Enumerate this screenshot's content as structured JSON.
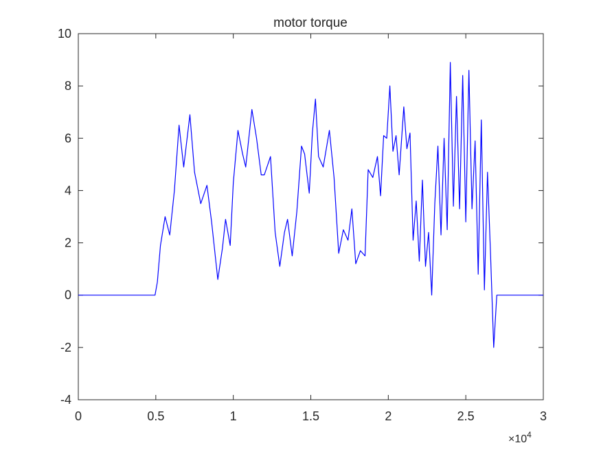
{
  "chart_data": {
    "type": "line",
    "title": "motor torque",
    "xlabel": "",
    "ylabel": "",
    "xlim": [
      0,
      30000
    ],
    "ylim": [
      -4,
      10
    ],
    "x_ticks": [
      0,
      5000,
      10000,
      15000,
      20000,
      25000,
      30000
    ],
    "x_tick_labels": [
      "0",
      "0.5",
      "1",
      "1.5",
      "2",
      "2.5",
      "3"
    ],
    "y_ticks": [
      -4,
      -2,
      0,
      2,
      4,
      6,
      8,
      10
    ],
    "y_tick_labels": [
      "-4",
      "-2",
      "0",
      "2",
      "4",
      "6",
      "8",
      "10"
    ],
    "x_exponent_label": "×10",
    "x_exponent_power": "4",
    "grid": false,
    "line_color": "#0000ff",
    "series": [
      {
        "x": [
          0,
          4950,
          5100,
          5300,
          5600,
          5900,
          6200,
          6500,
          6800,
          7200,
          7500,
          7900,
          8300,
          8600,
          9000,
          9300,
          9500,
          9800,
          10000,
          10300,
          10600,
          10800,
          11200,
          11500,
          11800,
          12000,
          12400,
          12700,
          13000,
          13300,
          13500,
          13800,
          14100,
          14400,
          14600,
          14900,
          15100,
          15300,
          15500,
          15800,
          16200,
          16500,
          16800,
          17100,
          17400,
          17650,
          17900,
          18200,
          18500,
          18700,
          19000,
          19300,
          19500,
          19700,
          19900,
          20100,
          20300,
          20500,
          20700,
          21000,
          21200,
          21400,
          21600,
          21800,
          22000,
          22200,
          22400,
          22600,
          22800,
          23000,
          23200,
          23400,
          23600,
          23800,
          24000,
          24200,
          24400,
          24600,
          24800,
          25000,
          25200,
          25400,
          25600,
          25800,
          26000,
          26200,
          26400,
          26600,
          26800,
          27000,
          27200,
          27400,
          27600,
          27800,
          28000,
          28200,
          28400,
          28600,
          28800,
          29000,
          29200,
          29400,
          29600,
          29800,
          30000
        ],
        "y": [
          0,
          0,
          0.5,
          1.9,
          3.0,
          2.3,
          4.0,
          6.5,
          4.9,
          6.9,
          4.7,
          3.5,
          4.2,
          2.8,
          0.6,
          1.8,
          2.9,
          1.9,
          4.3,
          6.3,
          5.4,
          4.9,
          7.1,
          6.0,
          4.6,
          4.6,
          5.3,
          2.4,
          1.1,
          2.4,
          2.9,
          1.5,
          3.2,
          5.7,
          5.4,
          3.9,
          6.2,
          7.5,
          5.3,
          4.9,
          6.3,
          4.5,
          1.6,
          2.5,
          2.1,
          3.3,
          1.2,
          1.7,
          1.5,
          4.8,
          4.5,
          5.3,
          3.8,
          6.1,
          6.0,
          8.0,
          5.5,
          6.1,
          4.6,
          7.2,
          5.6,
          6.2,
          2.1,
          3.6,
          1.3,
          4.4,
          1.1,
          2.4,
          0.0,
          3.5,
          5.7,
          2.3,
          6.0,
          2.5,
          8.9,
          3.4,
          7.6,
          3.3,
          8.4,
          2.8,
          8.6,
          3.3,
          5.9,
          0.8,
          6.7,
          0.2,
          4.7,
          1.5,
          -2.0,
          0,
          0,
          0,
          0,
          0,
          0,
          0,
          0,
          0,
          0,
          0,
          0,
          0,
          0,
          0,
          0
        ]
      }
    ]
  }
}
